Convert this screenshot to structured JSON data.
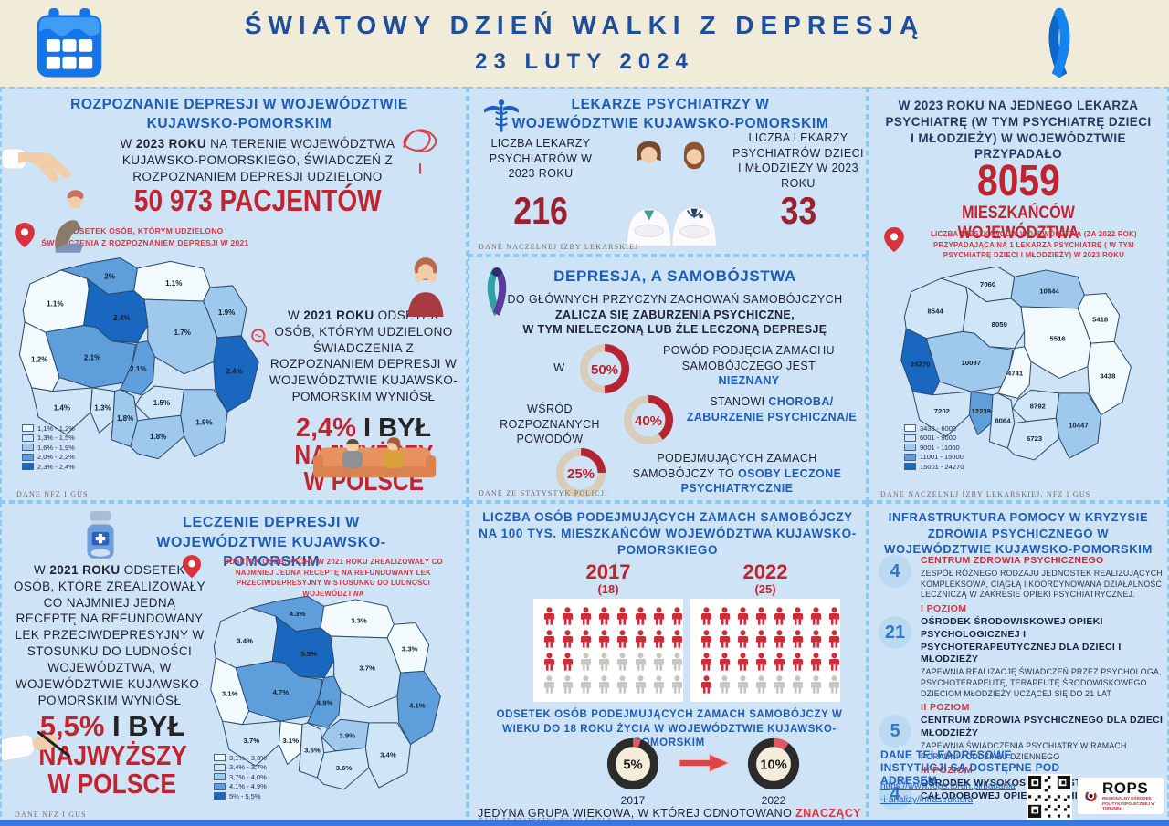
{
  "header": {
    "title": "ŚWIATOWY DZIEŃ WALKI Z DEPRESJĄ",
    "date": "23 LUTY 2024"
  },
  "colors": {
    "accent_blue": "#1b5cb8",
    "title_navy": "#1d4f9e",
    "stat_red": "#c1242e",
    "note_red": "#d8353f",
    "panel_bg": "#cfe3f7",
    "header_beige": "#f1ecd9"
  },
  "rozpoznanie": {
    "title": "ROZPOZNANIE DEPRESJI W WOJEWÓDZTWIE KUJAWSKO-POMORSKIM",
    "intro_pre": "W",
    "intro_bold": "2023 ROKU",
    "intro_post": "NA TERENIE WOJEWÓDZTWA KUJAWSKO-POMORSKIEGO, ŚWIADCZEŃ Z ROZPOZNANIEM DEPRESJI UDZIELONO",
    "big_stat": "50 973 PACJENTÓW",
    "pin_note": "ODSETEK OSÓB, KTÓRYM UDZIELONO ŚWIADCZENIA Z ROZPOZNANIEM DEPRESJI W 2021",
    "side_pre": "W",
    "side_bold": "2021 ROKU",
    "side_post": "ODSETEK OSÓB, KTÓRYM UDZIELONO ŚWIADCZENIA Z ROZPOZNANIEM DEPRESJI W WOJEWÓDZTWIE KUJAWSKO-POMORSKIM WYNIÓSŁ",
    "result_value": "2,4%",
    "result_rest": "I BYŁ",
    "result_line2": "NAJWYŻSZY",
    "result_line3": "W POLSCE",
    "source": "DANE NFZ I GUS"
  },
  "lekarze": {
    "title_line1": "LEKARZE PSYCHIATRZY W",
    "title_line2": "WOJEWÓDZTWIE KUJAWSKO-POMORSKIM",
    "left_label": "LICZBA LEKARZY PSYCHIATRÓW W 2023 ROKU",
    "left_value": "216",
    "right_label": "LICZBA LEKARZY PSYCHIATRÓW DZIECI I MŁODZIEŻY W 2023 ROKU",
    "right_value": "33",
    "source": "DANE NACZELNEJ IZBY LEKARSKIEJ"
  },
  "samobojstwa": {
    "title": "DEPRESJA, A SAMOBÓJSTWA",
    "intro_line1": "DO GŁÓWNYCH PRZYCZYN ZACHOWAŃ SAMOBÓJCZYCH",
    "intro_line2": "ZALICZA SIĘ ZABURZENIA PSYCHICZNE,",
    "intro_line3": "W TYM NIELECZONĄ LUB ŹLE LECZONĄ DEPRESJĘ",
    "row1_left": "W",
    "row1_text": "POWÓD PODJĘCIA ZAMACHU SAMOBÓJCZEGO JEST",
    "row1_highlight": "NIEZNANY",
    "row2_left": "WŚRÓD ROZPOZNANYCH POWODÓW",
    "row2_text": "STANOWI",
    "row2_highlight": "CHOROBA/ ZABURZENIE PSYCHICZNA/E",
    "row3_text": "PODEJMUJĄCYCH ZAMACH SAMOBÓJCZY TO",
    "row3_highlight": "OSOBY LECZONE PSYCHIATRYCZNIE",
    "source": "DANE ZE STATYSTYK POLICJI"
  },
  "na_lekarza": {
    "intro": "W 2023 ROKU NA JEDNEGO LEKARZA PSYCHIATRĘ (W TYM PSYCHIATRĘ DZIECI I MŁODZIEŻY) W WOJEWÓDZTWIE PRZYPADAŁO",
    "big_value": "8059",
    "big_label": "MIESZKAŃCÓW WOJEWÓDZTWA",
    "pin_note": "LICZBA MIESZKAŃCÓW WOJEWÓDZTWA (ZA 2022 ROK) PRZYPADAJĄCA NA 1 LEKARZA PSYCHIATRĘ ( W TYM PSYCHIATRĘ DZIECI I MŁODZIEŻY) W 2023 ROKU",
    "source": "DANE NACZELNEJ IZBY LEKARSKIEJ, NFZ I GUS"
  },
  "leczenie": {
    "title": "LECZENIE DEPRESJI W WOJEWÓDZTWIE KUJAWSKO-POMORSKIM",
    "pin_note": "ODSETEK OSÓB, KTÓRE W 2021 ROKU ZREALIZOWAŁY CO NAJMNIEJ JEDNĄ RECEPTĘ NA REFUNDOWANY LEK PRZECIWDEPRESYJNY W STOSUNKU DO LUDNOŚCI WOJEWÓDZTWA",
    "body_pre": "W",
    "body_bold": "2021 ROKU",
    "body_post": "ODSETEK OSÓB, KTÓRE ZREALIZOWAŁY CO NAJMNIEJ JEDNĄ RECEPTĘ NA REFUNDOWANY LEK PRZECIWDEPRESYJNY W STOSUNKU DO LUDNOŚCI WOJEWÓDZTWA, W WOJEWÓDZTWIE KUJAWSKO-POMORSKIM WYNIÓSŁ",
    "result_value": "5,5%",
    "result_rest": "I BYŁ",
    "result_line2": "NAJWYŻSZY",
    "result_line3": "W POLSCE",
    "source": "DANE NFZ I GUS"
  },
  "zamachy": {
    "title": "LICZBA OSÓB PODEJMUJĄCYCH ZAMACH SAMOBÓJCZY NA 100 TYS. MIESZKAŃCÓW WOJEWÓDZTWA KUJAWSKO-POMORSKIEGO",
    "subtitle": "ODSETEK OSÓB PODEJMUJĄCYCH ZAMACH SAMOBÓJCZY W WIEKU DO 18 ROKU ŻYCIA W WOJEWÓDZTWIE KUJAWSKO-POMORSKIM",
    "footer_pre": "JEDYNA GRUPA WIEKOWA, W KTÓREJ ODNOTOWANO",
    "footer_highlight": "ZNACZĄCY WZROST",
    "source": "DANE ZE STATYSTYK POLICJI I GUS"
  },
  "infrastruktura": {
    "title": "INFRASTRUKTURA POMOCY W KRYZYSIE ZDROWIA PSYCHICZNEGO W WOJEWÓDZTWIE KUJAWSKO-POMORSKIM",
    "items": [
      {
        "badge": "4",
        "heading": "CENTRUM ZDROWIA PSYCHICZNEGO",
        "desc": "ZESPÓŁ RÓŻNEGO RODZAJU JEDNOSTEK REALIZUJĄCYCH KOMPLEKSOWĄ, CIĄGŁĄ I KOORDYNOWANĄ DZIAŁALNOŚĆ LECZNICZĄ W ZAKRESIE OPIEKI PSYCHIATRYCZNEJ.",
        "level_after": "I POZIOM"
      },
      {
        "badge": "21",
        "heading": "OŚRODEK ŚRODOWISKOWEJ OPIEKI PSYCHOLOGICZNEJ I PSYCHOTERAPEUTYCZNEJ DLA DZIECI I MŁODZIEŻY",
        "desc": "ZAPEWNIA REALIZACJĘ ŚWIADCZEŃ PRZEZ PSYCHOLOGA, PSYCHOTERAPEUTĘ, TERAPEUTĘ ŚRODOWISKOWEGO DZIECIOM MŁODZIEŻY UCZĄCEJ SIĘ DO 21 LAT",
        "level_after": "II POZIOM"
      },
      {
        "badge": "5",
        "heading": "CENTRUM ZDROWIA PSYCHICZNEGO DLA DZIECI MŁODZIEŻY",
        "desc": "ZAPEWNIA ŚWIADCZENIA PSYCHIATRY W RAMACH PORADNI / ODDZIAŁU DZIENNEGO",
        "level_after": "III POZIOM"
      },
      {
        "badge": "4",
        "heading": "OŚRODEK WYSOKOSPECJALISTYCZNEJ CAŁODOBOWEJ OPIEKI PSYCHIATRYCZNEJ",
        "desc": "",
        "level_after": ""
      }
    ],
    "footer": "DANE TELEADRESOWE INSTYTUCJI SĄ DOSTĘPNE POD ADRESEM:",
    "link": "https://www.rops.torun.pl/badania-i-analizy/infrastruktura",
    "logo_name": "ROPS",
    "logo_sub": "REGIONALNY OŚRODEK POLITYKI SPOŁECZNEJ W TORUNIU"
  },
  "chart_data": [
    {
      "type": "choropleth",
      "title": "ODSETEK OSÓB, KTÓRYM UDZIELONO ŚWIADCZENIA Z ROZPOZNANIEM DEPRESJI W 2021",
      "unit": "%",
      "palette": [
        "#f2fafe",
        "#cfe6f7",
        "#9fc9ec",
        "#5e9edb",
        "#1a67c0"
      ],
      "bin_max": [
        1.2,
        1.5,
        1.9,
        2.2,
        2.4
      ],
      "legend": [
        "1,1% - 1,2%",
        "1,3% - 1,5%",
        "1,6% - 1,9%",
        "2,0% - 2,2%",
        "2,3% - 2,4%"
      ],
      "regions": {
        "zachodniopomorskie": {
          "value": 1.1,
          "label": "1.1%"
        },
        "pomorskie": {
          "value": 2.0,
          "label": "2%"
        },
        "warminsko-mazurskie": {
          "value": 1.1,
          "label": "1.1%"
        },
        "podlaskie": {
          "value": 1.9,
          "label": "1.9%"
        },
        "kujawsko-pomorskie": {
          "value": 2.4,
          "label": "2.4%"
        },
        "wielkopolskie": {
          "value": 2.1,
          "label": "2.1%"
        },
        "mazowieckie": {
          "value": 1.7,
          "label": "1.7%"
        },
        "lubuskie": {
          "value": 1.2,
          "label": "1.2%"
        },
        "lodzkie": {
          "value": 2.1,
          "label": "2.1%"
        },
        "lubelskie": {
          "value": 2.4,
          "label": "2.4%"
        },
        "dolnoslaskie": {
          "value": 1.4,
          "label": "1.4%"
        },
        "opolskie": {
          "value": 1.3,
          "label": "1.3%"
        },
        "slaskie": {
          "value": 1.8,
          "label": "1.8%"
        },
        "swietokrzyskie": {
          "value": 1.5,
          "label": "1.5%"
        },
        "malopolskie": {
          "value": 1.8,
          "label": "1.8%"
        },
        "podkarpackie": {
          "value": 1.9,
          "label": "1.9%"
        }
      }
    },
    {
      "type": "choropleth",
      "title": "LICZBA MIESZKAŃCÓW WOJEWÓDZTWA (ZA 2022 ROK) PRZYPADAJĄCA NA 1 LEKARZA PSYCHIATRĘ W 2023 ROKU",
      "unit": "mieszkańców",
      "palette": [
        "#f2fafe",
        "#cfe6f7",
        "#9fc9ec",
        "#5e9edb",
        "#1a67c0"
      ],
      "bin_max": [
        6000,
        9000,
        11000,
        15000,
        24270
      ],
      "legend": [
        "3438 - 6000",
        "6001 - 9000",
        "9001 - 11000",
        "11001 - 15000",
        "15001 - 24270"
      ],
      "regions": {
        "zachodniopomorskie": {
          "value": 8544,
          "label": "8544"
        },
        "pomorskie": {
          "value": 7060,
          "label": "7060"
        },
        "warminsko-mazurskie": {
          "value": 10844,
          "label": "10844"
        },
        "podlaskie": {
          "value": 5418,
          "label": "5418"
        },
        "kujawsko-pomorskie": {
          "value": 8059,
          "label": "8059"
        },
        "wielkopolskie": {
          "value": 10097,
          "label": "10097"
        },
        "mazowieckie": {
          "value": 5516,
          "label": "5516"
        },
        "lubuskie": {
          "value": 24270,
          "label": "24270"
        },
        "lodzkie": {
          "value": 4741,
          "label": "4741"
        },
        "lubelskie": {
          "value": 3438,
          "label": "3438"
        },
        "dolnoslaskie": {
          "value": 7202,
          "label": "7202"
        },
        "opolskie": {
          "value": 12239,
          "label": "12239"
        },
        "slaskie": {
          "value": 8064,
          "label": "8064"
        },
        "swietokrzyskie": {
          "value": 8792,
          "label": "8792"
        },
        "malopolskie": {
          "value": 6723,
          "label": "6723"
        },
        "podkarpackie": {
          "value": 10447,
          "label": "10447"
        }
      }
    },
    {
      "type": "choropleth",
      "title": "ODSETEK OSÓB, KTÓRE W 2021 ROKU ZREALIZOWAŁY CO NAJMNIEJ JEDNĄ RECEPTĘ NA REFUNDOWANY LEK PRZECIWDEPRESYJNY",
      "unit": "%",
      "palette": [
        "#f2fafe",
        "#cfe6f7",
        "#9fc9ec",
        "#5e9edb",
        "#1a67c0"
      ],
      "bin_max": [
        3.3,
        3.7,
        4.0,
        4.9,
        5.5
      ],
      "legend": [
        "3,1% - 3,3%",
        "3,4% - 3,7%",
        "3,7% - 4,0%",
        "4,1% - 4,9%",
        "5% - 5,5%"
      ],
      "regions": {
        "zachodniopomorskie": {
          "value": 3.4,
          "label": "3.4%"
        },
        "pomorskie": {
          "value": 4.3,
          "label": "4.3%"
        },
        "warminsko-mazurskie": {
          "value": 3.3,
          "label": "3.3%"
        },
        "podlaskie": {
          "value": 3.3,
          "label": "3.3%"
        },
        "kujawsko-pomorskie": {
          "value": 5.5,
          "label": "5.5%"
        },
        "wielkopolskie": {
          "value": 4.7,
          "label": "4.7%"
        },
        "mazowieckie": {
          "value": 3.7,
          "label": "3.7%"
        },
        "lubuskie": {
          "value": 3.1,
          "label": "3.1%"
        },
        "lodzkie": {
          "value": 4.9,
          "label": "4.9%"
        },
        "lubelskie": {
          "value": 4.1,
          "label": "4.1%"
        },
        "dolnoslaskie": {
          "value": 3.7,
          "label": "3.7%"
        },
        "opolskie": {
          "value": 3.1,
          "label": "3.1%"
        },
        "slaskie": {
          "value": 3.6,
          "label": "3.6%"
        },
        "swietokrzyskie": {
          "value": 3.9,
          "label": "3.9%"
        },
        "malopolskie": {
          "value": 3.6,
          "label": "3.6%"
        },
        "podkarpackie": {
          "value": 3.4,
          "label": "3.4%"
        }
      }
    },
    {
      "type": "donut-set",
      "items": [
        {
          "value": 50,
          "label": "50%"
        },
        {
          "value": 40,
          "label": "40%"
        },
        {
          "value": 25,
          "label": "25%"
        }
      ]
    },
    {
      "type": "pictogram",
      "total": 32,
      "columns": 8,
      "items": [
        {
          "year": "2017",
          "value": 18,
          "value_label": "(18)"
        },
        {
          "year": "2022",
          "value": 25,
          "value_label": "(25)"
        }
      ]
    },
    {
      "type": "donut-pair",
      "items": [
        {
          "year": "2017",
          "value": 5,
          "label": "5%"
        },
        {
          "year": "2022",
          "value": 10,
          "label": "10%"
        }
      ]
    }
  ]
}
